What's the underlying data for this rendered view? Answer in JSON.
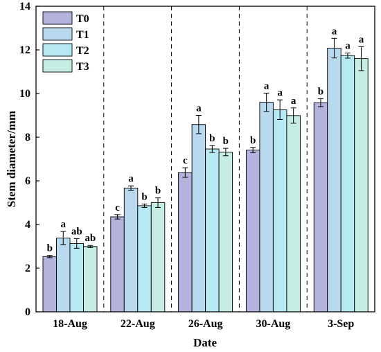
{
  "chart_data": {
    "type": "bar",
    "title": "",
    "xlabel": "Date",
    "ylabel": "Stem diameter/mm",
    "ylim": [
      0,
      14
    ],
    "yticks": [
      0,
      2,
      4,
      6,
      8,
      10,
      12,
      14
    ],
    "grid": false,
    "group_separators": "dashed",
    "legend_position": "top-left",
    "categories": [
      "18-Aug",
      "22-Aug",
      "26-Aug",
      "30-Aug",
      "3-Sep"
    ],
    "series": [
      {
        "name": "T0",
        "color": "#b3b3de",
        "values": [
          2.53,
          4.35,
          6.38,
          7.41,
          9.58
        ],
        "errors": [
          0.05,
          0.1,
          0.22,
          0.12,
          0.18
        ],
        "labels": [
          "b",
          "c",
          "c",
          "b",
          "b"
        ]
      },
      {
        "name": "T1",
        "color": "#b9d9ee",
        "values": [
          3.38,
          5.67,
          8.58,
          9.6,
          12.08
        ],
        "errors": [
          0.3,
          0.1,
          0.42,
          0.42,
          0.45
        ],
        "labels": [
          "a",
          "a",
          "a",
          "a",
          "a"
        ]
      },
      {
        "name": "T2",
        "color": "#b7e9f2",
        "values": [
          3.13,
          4.86,
          7.46,
          9.26,
          11.74
        ],
        "errors": [
          0.22,
          0.08,
          0.16,
          0.45,
          0.12
        ],
        "labels": [
          "ab",
          "b",
          "b",
          "a",
          "a"
        ]
      },
      {
        "name": "T3",
        "color": "#c5ede4",
        "values": [
          2.99,
          5.0,
          7.32,
          8.99,
          11.6
        ],
        "errors": [
          0.05,
          0.22,
          0.17,
          0.35,
          0.55
        ],
        "labels": [
          "ab",
          "b",
          "b",
          "a",
          "a"
        ]
      }
    ]
  }
}
